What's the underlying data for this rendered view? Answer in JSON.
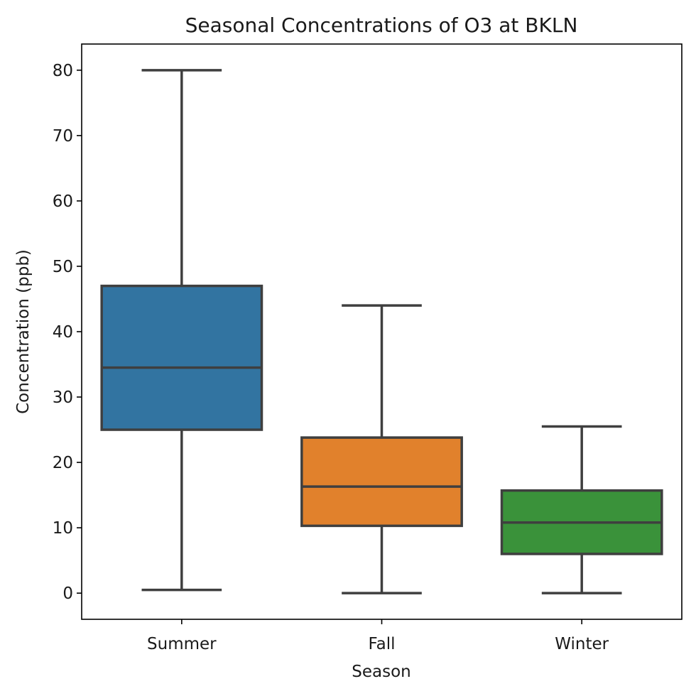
{
  "chart_data": {
    "type": "box",
    "title": "Seasonal Concentrations of O3 at BKLN",
    "xlabel": "Season",
    "ylabel": "Concentration (ppb)",
    "ylim": [
      -4,
      84
    ],
    "yticks": [
      0,
      10,
      20,
      30,
      40,
      50,
      60,
      70,
      80
    ],
    "grid": false,
    "categories": [
      "Summer",
      "Fall",
      "Winter"
    ],
    "boxes": [
      {
        "name": "Summer",
        "whisker_low": 0.5,
        "q1": 25.0,
        "median": 34.5,
        "q3": 47.0,
        "whisker_high": 80.0,
        "color": "#3274a1"
      },
      {
        "name": "Fall",
        "whisker_low": 0.0,
        "q1": 10.3,
        "median": 16.3,
        "q3": 23.8,
        "whisker_high": 44.0,
        "color": "#e1812c"
      },
      {
        "name": "Winter",
        "whisker_low": 0.0,
        "q1": 6.0,
        "median": 10.8,
        "q3": 15.7,
        "whisker_high": 25.5,
        "color": "#3a923a"
      }
    ]
  }
}
